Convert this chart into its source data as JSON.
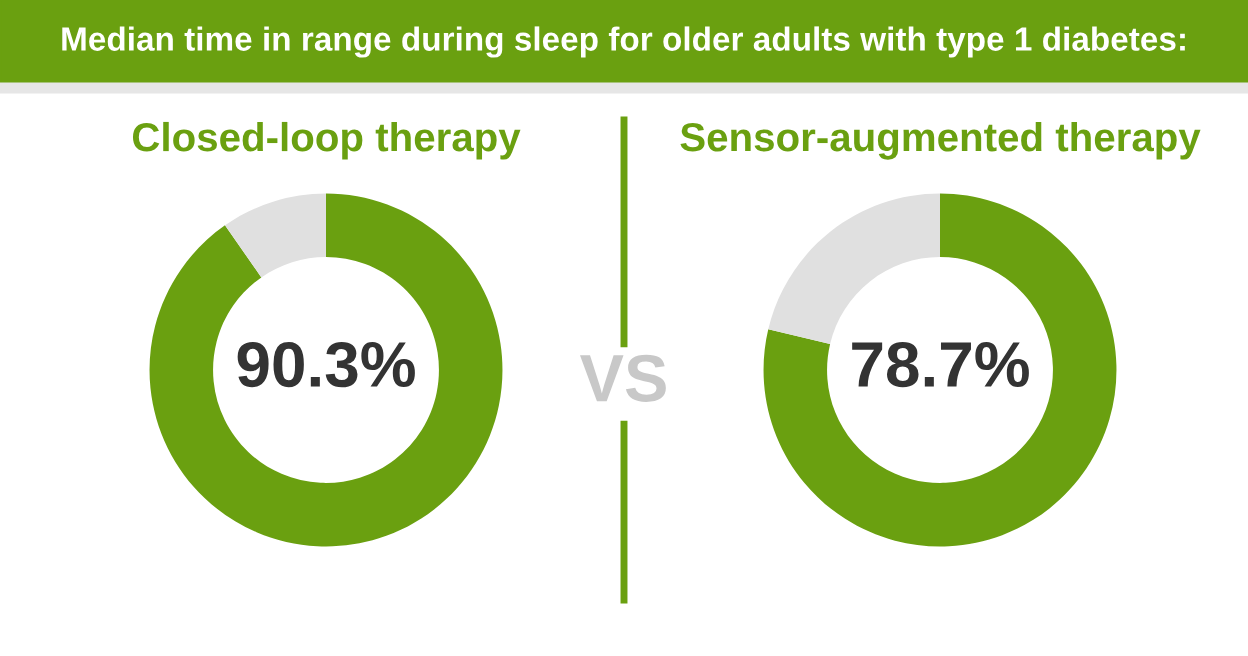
{
  "chart_data": [
    {
      "type": "donut",
      "title": "Closed-loop therapy",
      "categories": [
        null,
        null
      ],
      "values": [
        90.3,
        9.7
      ],
      "colors": [
        "#6aa010",
        "#e0e0e0"
      ],
      "value_labels": [
        "90.3%",
        null
      ],
      "annotations": [
        "Median time in range during sleep for older adults with type 1 diabetes:",
        "VS"
      ]
    },
    {
      "type": "donut",
      "title": "Sensor-augmented therapy",
      "categories": [
        null,
        null
      ],
      "values": [
        78.7,
        21.3
      ],
      "colors": [
        "#6aa010",
        "#e0e0e0"
      ],
      "value_labels": [
        "78.7%",
        null
      ]
    }
  ]
}
